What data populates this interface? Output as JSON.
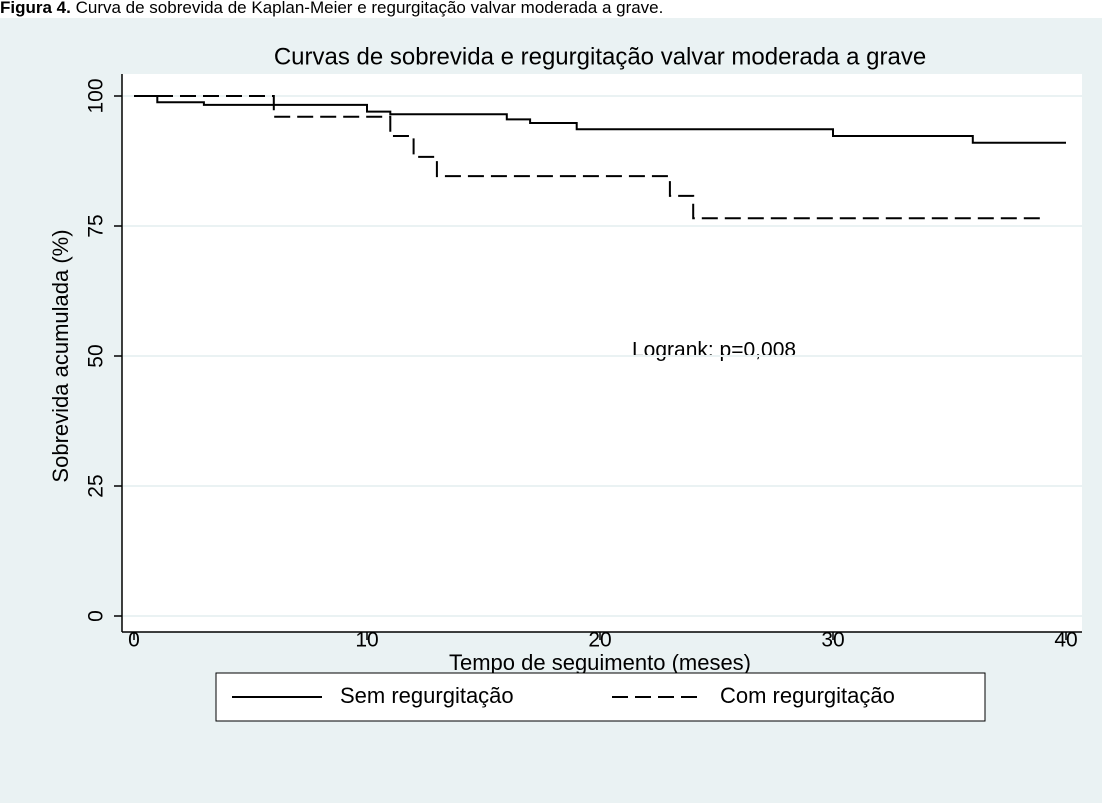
{
  "caption": {
    "label": "Figura 4.",
    "text": "Curva de sobrevida de Kaplan-Meier e regurgitação valvar moderada a grave."
  },
  "chart_data": {
    "type": "step",
    "title": "Curvas de sobrevida e regurgitação valvar moderada a grave",
    "x_label": "Tempo de seguimento (meses)",
    "y_label": "Sobrevida acumulada (%)",
    "annotation": "Logrank: p=0,008",
    "xlim": [
      0,
      40
    ],
    "ylim": [
      0,
      100
    ],
    "xticks": [
      0,
      10,
      20,
      30,
      40
    ],
    "yticks": [
      0,
      25,
      50,
      75,
      100
    ],
    "grid": true,
    "series": [
      {
        "name": "Sem regurgitação",
        "color": "#000000",
        "style": "solid",
        "x": [
          0,
          1,
          3,
          10,
          11,
          16,
          17,
          19,
          30,
          36,
          40
        ],
        "values": [
          100,
          98.8,
          98.3,
          97,
          96.5,
          95.5,
          94.8,
          93.6,
          92.3,
          91,
          91
        ]
      },
      {
        "name": "Com regurgitação",
        "color": "#000000",
        "style": "dashed",
        "x": [
          0,
          6,
          11,
          12,
          13,
          23,
          24,
          39
        ],
        "values": [
          100,
          96,
          92.3,
          88.3,
          84.6,
          80.8,
          76.5,
          76.5
        ]
      }
    ]
  }
}
